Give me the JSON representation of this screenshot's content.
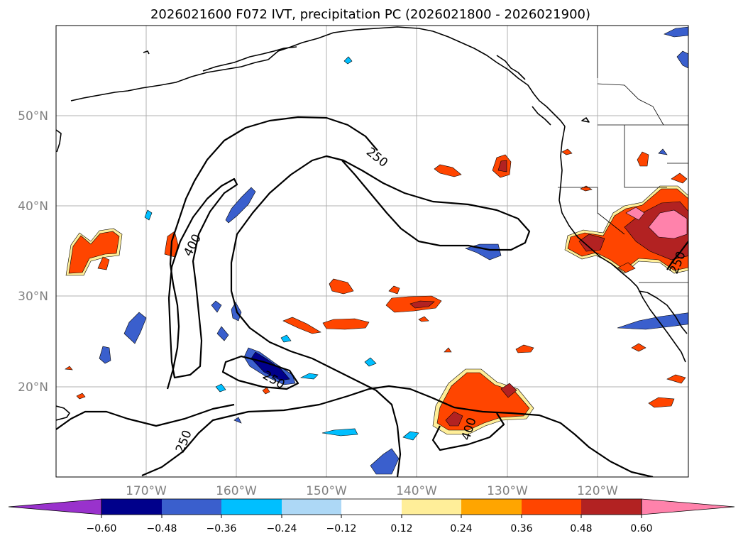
{
  "title": "2026021600 F072 IVT, precipitation PC (2026021800 - 2026021900)",
  "lat_labels": [
    "50°N",
    "40°N",
    "30°N",
    "20°N"
  ],
  "lon_labels": [
    "170°W",
    "160°W",
    "150°W",
    "140°W",
    "130°W",
    "120°W"
  ],
  "contour_labels": {
    "l250_a": "250",
    "l400_a": "400",
    "l250_b": "250",
    "l400_b": "400",
    "l250_c": "250",
    "l250_d": "250"
  },
  "colorbar": {
    "ticks": [
      "−0.60",
      "−0.48",
      "−0.36",
      "−0.24",
      "−0.12",
      "0.12",
      "0.24",
      "0.36",
      "0.48",
      "0.60"
    ],
    "colors": {
      "under": "#9932cc",
      "b1": "#00008b",
      "b2": "#3a5fcd",
      "b3": "#00bfff",
      "b4": "#add8f6",
      "mid": "#ffffff",
      "r1": "#ffee99",
      "r2": "#ffa500",
      "r3": "#ff4500",
      "r4": "#b22222",
      "over": "#ff82ab"
    }
  }
}
